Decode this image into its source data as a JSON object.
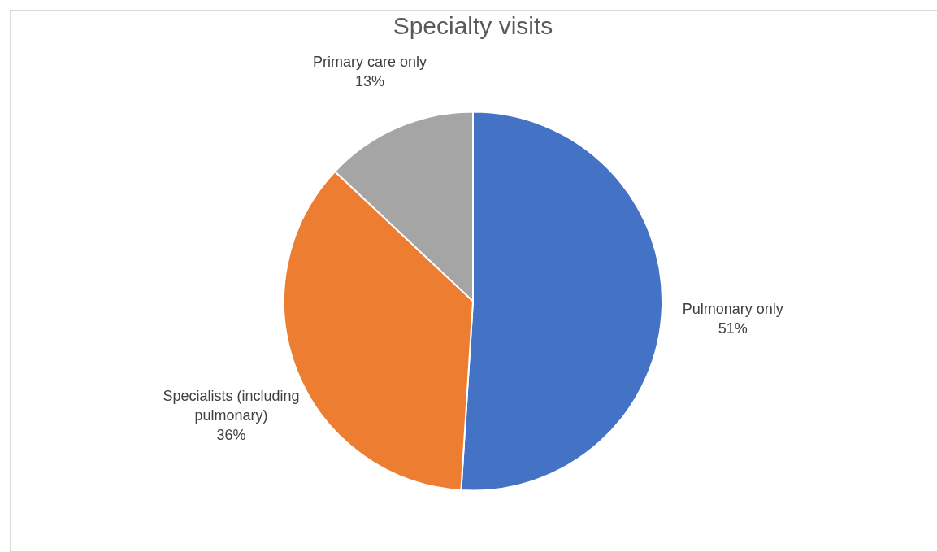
{
  "chart_data": {
    "type": "pie",
    "title": "Specialty visits",
    "categories": [
      "Pulmonary only",
      "Specialists (including pulmonary)",
      "Primary care only"
    ],
    "values": [
      51,
      36,
      13
    ],
    "colors": [
      "#4472c4",
      "#ed7d31",
      "#a5a5a5"
    ],
    "value_labels": [
      "51%",
      "36%",
      "13%"
    ]
  }
}
